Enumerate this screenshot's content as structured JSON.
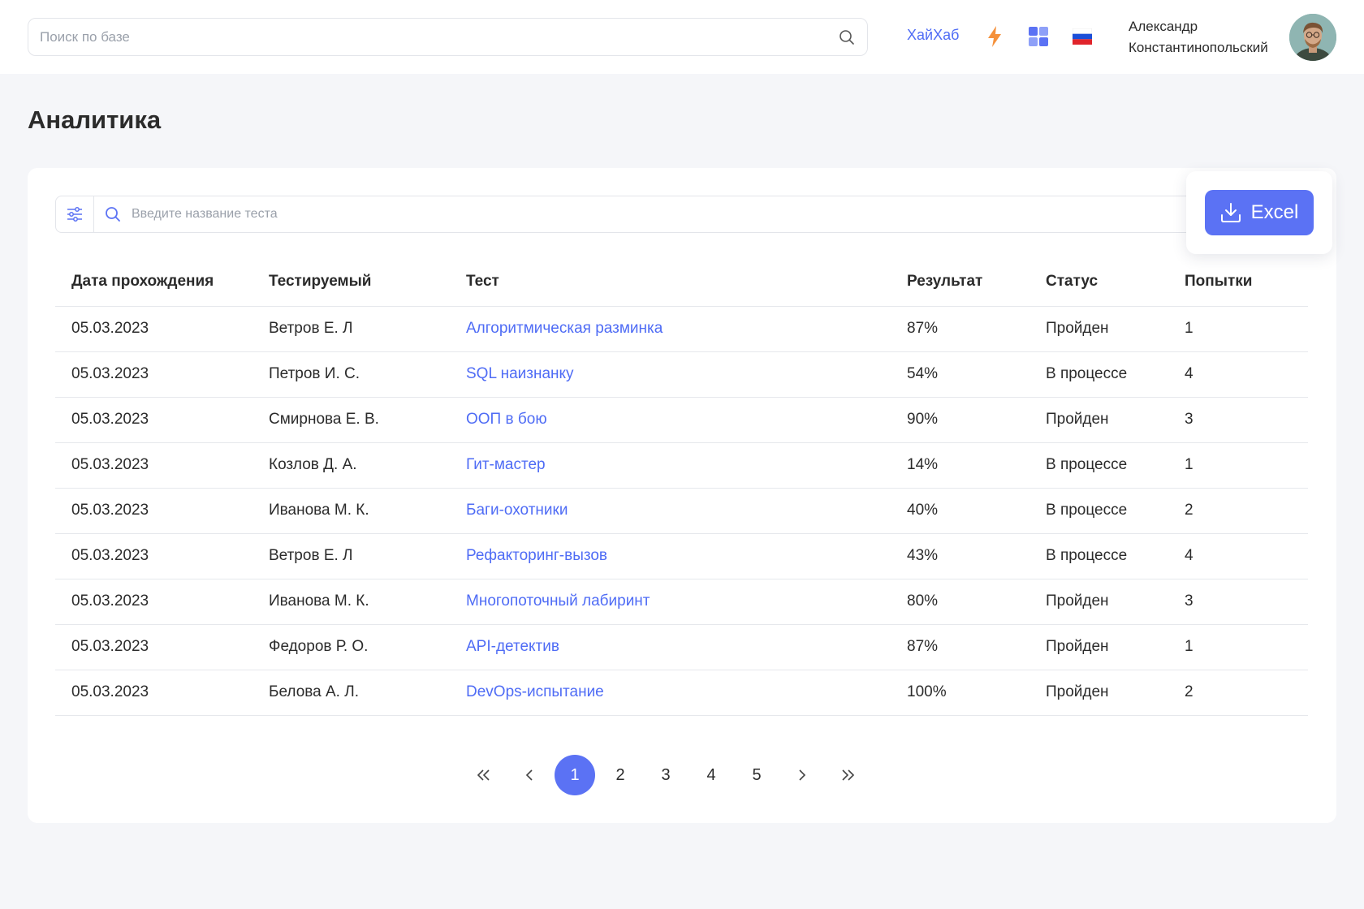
{
  "header": {
    "search_placeholder": "Поиск по базе",
    "hub_link": "ХайХаб",
    "user_name_line1": "Александр",
    "user_name_line2": "Константинопольский",
    "accent_color": "#4f6cf5"
  },
  "page": {
    "title": "Аналитика"
  },
  "filter": {
    "placeholder": "Введите название теста"
  },
  "export": {
    "label": "Excel"
  },
  "table": {
    "columns": {
      "date": "Дата прохождения",
      "person": "Тестируемый",
      "test": "Тест",
      "result": "Результат",
      "status": "Статус",
      "attempts": "Попытки"
    },
    "rows": [
      {
        "date": "05.03.2023",
        "person": "Ветров Е. Л",
        "test": "Алгоритмическая разминка",
        "result": "87%",
        "status": "Пройден",
        "attempts": "1"
      },
      {
        "date": "05.03.2023",
        "person": "Петров И. С.",
        "test": "SQL наизнанку",
        "result": "54%",
        "status": "В процессе",
        "attempts": "4"
      },
      {
        "date": "05.03.2023",
        "person": "Смирнова Е. В.",
        "test": "ООП в бою",
        "result": "90%",
        "status": "Пройден",
        "attempts": "3"
      },
      {
        "date": "05.03.2023",
        "person": "Козлов Д. А.",
        "test": "Гит-мастер",
        "result": "14%",
        "status": "В процессе",
        "attempts": "1"
      },
      {
        "date": "05.03.2023",
        "person": "Иванова М. К.",
        "test": "Баги-охотники",
        "result": "40%",
        "status": "В процессе",
        "attempts": "2"
      },
      {
        "date": "05.03.2023",
        "person": "Ветров Е. Л",
        "test": "Рефакторинг-вызов",
        "result": "43%",
        "status": "В процессе",
        "attempts": "4"
      },
      {
        "date": "05.03.2023",
        "person": "Иванова М. К.",
        "test": "Многопоточный лабиринт",
        "result": "80%",
        "status": "Пройден",
        "attempts": "3"
      },
      {
        "date": "05.03.2023",
        "person": "Федоров Р. О.",
        "test": "API-детектив",
        "result": "87%",
        "status": "Пройден",
        "attempts": "1"
      },
      {
        "date": "05.03.2023",
        "person": "Белова А. Л.",
        "test": "DevOps-испытание",
        "result": "100%",
        "status": "Пройден",
        "attempts": "2"
      }
    ]
  },
  "pagination": {
    "first": "«",
    "prev": "‹",
    "pages": [
      "1",
      "2",
      "3",
      "4",
      "5"
    ],
    "active": "1",
    "next": "›",
    "last": "»"
  }
}
